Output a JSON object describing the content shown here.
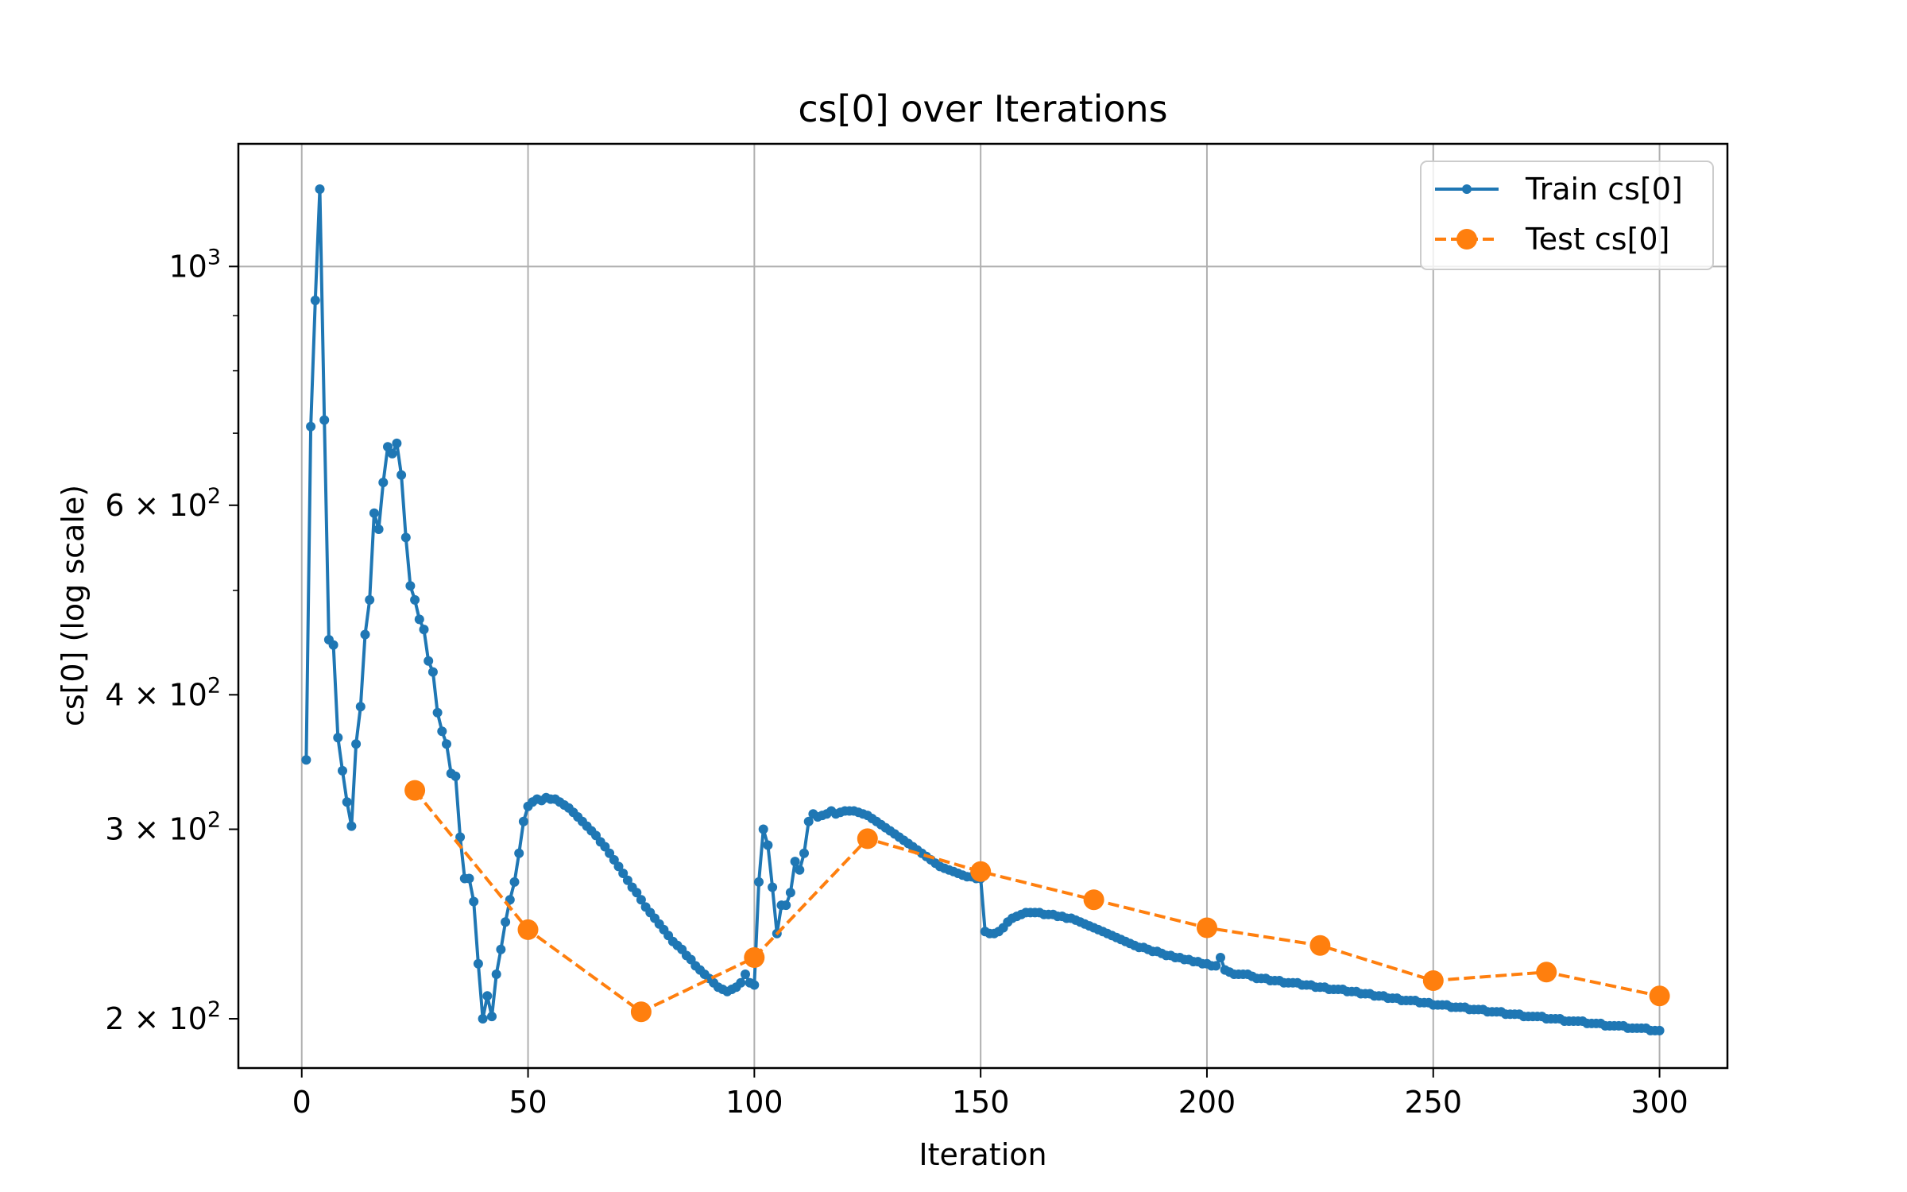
{
  "chart_data": {
    "type": "line",
    "title": "cs[0] over Iterations",
    "xlabel": "Iteration",
    "ylabel": "cs[0] (log scale)",
    "xlim": [
      -14,
      315
    ],
    "ylim": [
      180,
      1300
    ],
    "y_scale": "log",
    "grid": true,
    "legend_position": "top-right",
    "x_ticks": [
      0,
      50,
      100,
      150,
      200,
      250,
      300
    ],
    "x_tick_labels": [
      "0",
      "50",
      "100",
      "150",
      "200",
      "250",
      "300"
    ],
    "y_ticks": [
      1000,
      600,
      400,
      300,
      200
    ],
    "y_tick_labels": [
      {
        "base": "10",
        "exp": "3"
      },
      {
        "base": "6 × 10",
        "exp": "2"
      },
      {
        "base": "4 × 10",
        "exp": "2"
      },
      {
        "base": "3 × 10",
        "exp": "2"
      },
      {
        "base": "2 × 10",
        "exp": "2"
      }
    ],
    "series": [
      {
        "name": "Train cs[0]",
        "color": "#1f77b4",
        "style": "solid",
        "marker": "small-dot",
        "points": [
          [
            1,
            348
          ],
          [
            2,
            710
          ],
          [
            3,
            930
          ],
          [
            4,
            1180
          ],
          [
            5,
            720
          ],
          [
            6,
            450
          ],
          [
            7,
            445
          ],
          [
            8,
            365
          ],
          [
            9,
            340
          ],
          [
            10,
            318
          ],
          [
            11,
            302
          ],
          [
            12,
            360
          ],
          [
            13,
            390
          ],
          [
            14,
            455
          ],
          [
            15,
            490
          ],
          [
            16,
            590
          ],
          [
            17,
            570
          ],
          [
            18,
            630
          ],
          [
            19,
            680
          ],
          [
            20,
            670
          ],
          [
            21,
            685
          ],
          [
            22,
            640
          ],
          [
            23,
            560
          ],
          [
            24,
            505
          ],
          [
            25,
            490
          ],
          [
            26,
            470
          ],
          [
            27,
            460
          ],
          [
            28,
            430
          ],
          [
            29,
            420
          ],
          [
            30,
            385
          ],
          [
            31,
            370
          ],
          [
            32,
            360
          ],
          [
            33,
            338
          ],
          [
            34,
            336
          ],
          [
            35,
            295
          ],
          [
            36,
            270
          ],
          [
            37,
            270
          ],
          [
            38,
            257
          ],
          [
            39,
            225
          ],
          [
            40,
            200
          ],
          [
            41,
            210
          ],
          [
            42,
            201
          ],
          [
            43,
            220
          ],
          [
            44,
            232
          ],
          [
            45,
            246
          ],
          [
            46,
            258
          ],
          [
            47,
            268
          ],
          [
            48,
            285
          ],
          [
            49,
            305
          ],
          [
            50,
            315
          ],
          [
            51,
            318
          ],
          [
            52,
            320
          ],
          [
            53,
            319
          ],
          [
            54,
            321
          ],
          [
            55,
            320
          ],
          [
            56,
            320
          ],
          [
            57,
            318
          ],
          [
            58,
            316
          ],
          [
            59,
            314
          ],
          [
            60,
            311
          ],
          [
            61,
            308
          ],
          [
            62,
            305
          ],
          [
            63,
            302
          ],
          [
            64,
            299
          ],
          [
            65,
            296
          ],
          [
            66,
            292
          ],
          [
            67,
            289
          ],
          [
            68,
            285
          ],
          [
            69,
            281
          ],
          [
            70,
            277
          ],
          [
            71,
            273
          ],
          [
            72,
            269
          ],
          [
            73,
            265
          ],
          [
            74,
            262
          ],
          [
            75,
            258
          ],
          [
            76,
            254
          ],
          [
            77,
            251
          ],
          [
            78,
            248
          ],
          [
            79,
            245
          ],
          [
            80,
            242
          ],
          [
            81,
            239
          ],
          [
            82,
            236
          ],
          [
            83,
            234
          ],
          [
            84,
            232
          ],
          [
            85,
            229
          ],
          [
            86,
            227
          ],
          [
            87,
            224
          ],
          [
            88,
            222
          ],
          [
            89,
            220
          ],
          [
            90,
            218
          ],
          [
            91,
            216
          ],
          [
            92,
            214
          ],
          [
            93,
            213
          ],
          [
            94,
            212
          ],
          [
            95,
            213
          ],
          [
            96,
            214
          ],
          [
            97,
            216
          ],
          [
            98,
            220
          ],
          [
            99,
            216
          ],
          [
            100,
            215
          ],
          [
            101,
            268
          ],
          [
            102,
            300
          ],
          [
            103,
            290
          ],
          [
            104,
            265
          ],
          [
            105,
            240
          ],
          [
            106,
            255
          ],
          [
            107,
            255
          ],
          [
            108,
            262
          ],
          [
            109,
            280
          ],
          [
            110,
            275
          ],
          [
            111,
            285
          ],
          [
            112,
            305
          ],
          [
            113,
            310
          ],
          [
            114,
            308
          ],
          [
            115,
            309
          ],
          [
            116,
            310
          ],
          [
            117,
            312
          ],
          [
            118,
            310
          ],
          [
            119,
            311
          ],
          [
            120,
            312
          ],
          [
            121,
            312
          ],
          [
            122,
            312
          ],
          [
            123,
            311
          ],
          [
            124,
            310
          ],
          [
            125,
            309
          ],
          [
            126,
            307
          ],
          [
            127,
            305
          ],
          [
            128,
            303
          ],
          [
            129,
            301
          ],
          [
            130,
            299
          ],
          [
            131,
            297
          ],
          [
            132,
            295
          ],
          [
            133,
            293
          ],
          [
            134,
            291
          ],
          [
            135,
            289
          ],
          [
            136,
            287
          ],
          [
            137,
            285
          ],
          [
            138,
            283
          ],
          [
            139,
            281
          ],
          [
            140,
            279
          ],
          [
            141,
            277
          ],
          [
            142,
            276
          ],
          [
            143,
            275
          ],
          [
            144,
            274
          ],
          [
            145,
            273
          ],
          [
            146,
            272
          ],
          [
            147,
            271
          ],
          [
            148,
            271
          ],
          [
            149,
            270
          ],
          [
            150,
            270
          ],
          [
            151,
            241
          ],
          [
            152,
            240
          ],
          [
            153,
            240
          ],
          [
            154,
            241
          ],
          [
            155,
            243
          ],
          [
            156,
            246
          ],
          [
            157,
            248
          ],
          [
            158,
            249
          ],
          [
            159,
            250
          ],
          [
            160,
            251
          ],
          [
            161,
            251
          ],
          [
            162,
            251
          ],
          [
            163,
            251
          ],
          [
            164,
            250
          ],
          [
            165,
            250
          ],
          [
            166,
            250
          ],
          [
            167,
            249
          ],
          [
            168,
            249
          ],
          [
            169,
            248
          ],
          [
            170,
            248
          ],
          [
            171,
            247
          ],
          [
            172,
            246
          ],
          [
            173,
            245
          ],
          [
            174,
            244
          ],
          [
            175,
            243
          ],
          [
            176,
            242
          ],
          [
            177,
            241
          ],
          [
            178,
            240
          ],
          [
            179,
            239
          ],
          [
            180,
            238
          ],
          [
            181,
            237
          ],
          [
            182,
            236
          ],
          [
            183,
            235
          ],
          [
            184,
            234
          ],
          [
            185,
            233
          ],
          [
            186,
            233
          ],
          [
            187,
            232
          ],
          [
            188,
            231
          ],
          [
            189,
            231
          ],
          [
            190,
            230
          ],
          [
            191,
            229
          ],
          [
            192,
            229
          ],
          [
            193,
            228
          ],
          [
            194,
            228
          ],
          [
            195,
            227
          ],
          [
            196,
            227
          ],
          [
            197,
            226
          ],
          [
            198,
            226
          ],
          [
            199,
            225
          ],
          [
            200,
            225
          ],
          [
            201,
            224
          ],
          [
            202,
            224
          ],
          [
            203,
            228
          ],
          [
            204,
            222
          ],
          [
            205,
            221
          ],
          [
            206,
            220
          ],
          [
            207,
            220
          ],
          [
            208,
            220
          ],
          [
            209,
            220
          ],
          [
            210,
            219
          ],
          [
            211,
            218
          ],
          [
            212,
            218
          ],
          [
            213,
            218
          ],
          [
            214,
            217
          ],
          [
            215,
            217
          ],
          [
            216,
            217
          ],
          [
            217,
            216
          ],
          [
            218,
            216
          ],
          [
            219,
            216
          ],
          [
            220,
            216
          ],
          [
            221,
            215
          ],
          [
            222,
            215
          ],
          [
            223,
            215
          ],
          [
            224,
            214
          ],
          [
            225,
            214
          ],
          [
            226,
            214
          ],
          [
            227,
            213
          ],
          [
            228,
            213
          ],
          [
            229,
            213
          ],
          [
            230,
            213
          ],
          [
            231,
            212
          ],
          [
            232,
            212
          ],
          [
            233,
            212
          ],
          [
            234,
            211
          ],
          [
            235,
            211
          ],
          [
            236,
            211
          ],
          [
            237,
            210
          ],
          [
            238,
            210
          ],
          [
            239,
            210
          ],
          [
            240,
            209
          ],
          [
            241,
            209
          ],
          [
            242,
            209
          ],
          [
            243,
            208
          ],
          [
            244,
            208
          ],
          [
            245,
            208
          ],
          [
            246,
            208
          ],
          [
            247,
            207
          ],
          [
            248,
            207
          ],
          [
            249,
            207
          ],
          [
            250,
            206
          ],
          [
            251,
            206
          ],
          [
            252,
            206
          ],
          [
            253,
            206
          ],
          [
            254,
            205
          ],
          [
            255,
            205
          ],
          [
            256,
            205
          ],
          [
            257,
            205
          ],
          [
            258,
            204
          ],
          [
            259,
            204
          ],
          [
            260,
            204
          ],
          [
            261,
            204
          ],
          [
            262,
            203
          ],
          [
            263,
            203
          ],
          [
            264,
            203
          ],
          [
            265,
            203
          ],
          [
            266,
            202
          ],
          [
            267,
            202
          ],
          [
            268,
            202
          ],
          [
            269,
            202
          ],
          [
            270,
            201
          ],
          [
            271,
            201
          ],
          [
            272,
            201
          ],
          [
            273,
            201
          ],
          [
            274,
            201
          ],
          [
            275,
            200
          ],
          [
            276,
            200
          ],
          [
            277,
            200
          ],
          [
            278,
            200
          ],
          [
            279,
            199
          ],
          [
            280,
            199
          ],
          [
            281,
            199
          ],
          [
            282,
            199
          ],
          [
            283,
            199
          ],
          [
            284,
            198
          ],
          [
            285,
            198
          ],
          [
            286,
            198
          ],
          [
            287,
            198
          ],
          [
            288,
            197
          ],
          [
            289,
            197
          ],
          [
            290,
            197
          ],
          [
            291,
            197
          ],
          [
            292,
            197
          ],
          [
            293,
            196
          ],
          [
            294,
            196
          ],
          [
            295,
            196
          ],
          [
            296,
            196
          ],
          [
            297,
            196
          ],
          [
            298,
            195
          ],
          [
            299,
            195
          ],
          [
            300,
            195
          ]
        ]
      },
      {
        "name": "Test cs[0]",
        "color": "#ff7f0e",
        "style": "dashed",
        "marker": "large-dot",
        "points": [
          [
            25,
            326
          ],
          [
            50,
            242
          ],
          [
            75,
            203
          ],
          [
            100,
            228
          ],
          [
            125,
            294
          ],
          [
            150,
            274
          ],
          [
            175,
            258
          ],
          [
            200,
            243
          ],
          [
            225,
            234
          ],
          [
            250,
            217
          ],
          [
            275,
            221
          ],
          [
            300,
            210
          ]
        ]
      }
    ]
  }
}
